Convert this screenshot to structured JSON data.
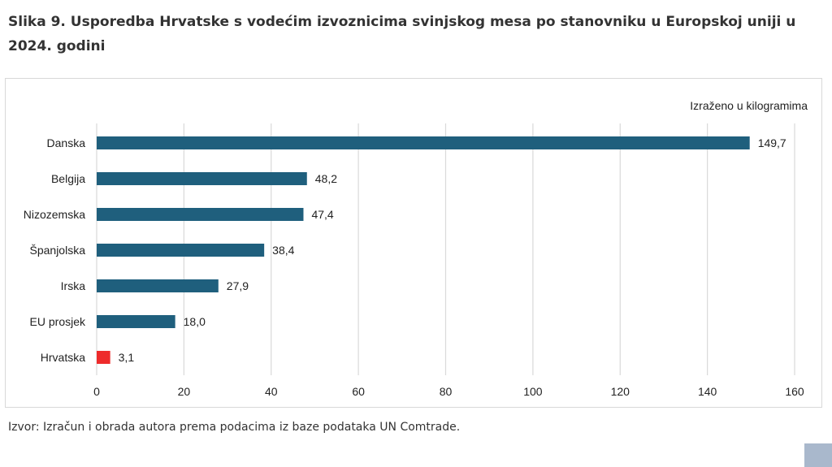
{
  "figure": {
    "title": "Slika 9. Usporedba Hrvatske s vodećim izvoznicima svinjskog mesa po stanovniku u Europskoj uniji u 2024. godini",
    "unit_note": "Izraženo u kilogramima",
    "source": "Izvor: Izračun i obrada autora prema podacima iz baze podataka UN Comtrade."
  },
  "chart_data": {
    "type": "bar",
    "orientation": "horizontal",
    "title": "",
    "xlabel": "",
    "ylabel": "",
    "categories": [
      "Danska",
      "Belgija",
      "Nizozemska",
      "Španjolska",
      "Irska",
      "EU prosjek",
      "Hrvatska"
    ],
    "values": [
      149.7,
      48.2,
      47.4,
      38.4,
      27.9,
      18.0,
      3.1
    ],
    "value_labels": [
      "149,7",
      "48,2",
      "47,4",
      "38,4",
      "27,9",
      "18,0",
      "3,1"
    ],
    "xlim": [
      0,
      160
    ],
    "xticks": [
      0,
      20,
      40,
      60,
      80,
      100,
      120,
      140,
      160
    ],
    "grid": "vertical",
    "colors": {
      "bar": "#1f5f7d",
      "highlight": "#ee2b2b",
      "grid": "#d9d9d9"
    },
    "highlight_category": "Hrvatska"
  }
}
